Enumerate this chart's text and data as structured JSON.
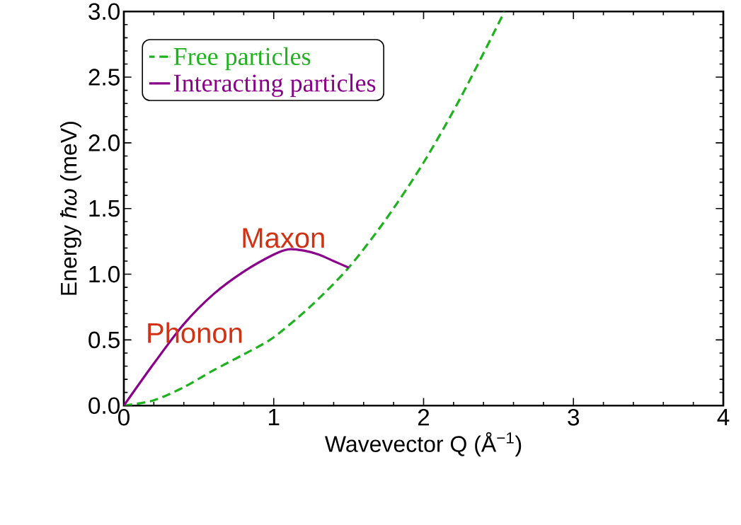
{
  "chart_data": {
    "type": "line",
    "xlabel": "Wavevector Q (Å$^{−1}$)",
    "ylabel": "Energy *ħω* (meV)",
    "series": [
      {
        "name": "Free particles",
        "color": "#1fb21f",
        "line_style": "dashed",
        "x": [
          0,
          0.2,
          0.4,
          0.6,
          0.8,
          1,
          1.25,
          1.5,
          1.75,
          2,
          2.25,
          2.54
        ],
        "values": [
          0,
          0.04,
          0.14,
          0.27,
          0.39,
          0.52,
          0.76,
          1.05,
          1.42,
          1.85,
          2.35,
          3.0
        ]
      },
      {
        "name": "Interacting particles",
        "color": "#8b008b",
        "line_style": "solid",
        "x": [
          0,
          0.2,
          0.4,
          0.6,
          0.8,
          1.0,
          1.1,
          1.2,
          1.3,
          1.4,
          1.5
        ],
        "values": [
          0,
          0.32,
          0.62,
          0.85,
          1.02,
          1.15,
          1.19,
          1.18,
          1.15,
          1.1,
          1.05
        ]
      }
    ],
    "annotations": [
      "Phonon",
      "Maxon"
    ],
    "xlim": [
      0,
      4
    ],
    "ylim": [
      0,
      3.0
    ],
    "xticks": [
      0,
      1,
      2,
      3,
      4
    ],
    "yticks": [
      {
        "value": 0,
        "label": "0.0"
      },
      0.5,
      {
        "value": 1,
        "label": "1.0"
      },
      1.5,
      {
        "value": 2,
        "label": "2.0"
      },
      2.5,
      {
        "value": 3,
        "label": "3.0"
      }
    ],
    "legend": "top left",
    "grid": false,
    "marker": "none"
  }
}
